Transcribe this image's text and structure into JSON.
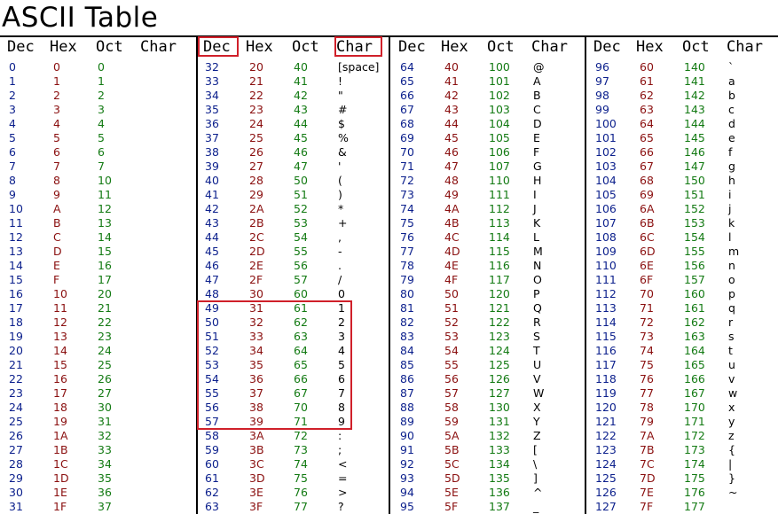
{
  "title": "ASCII Table",
  "headers": [
    "Dec",
    "Hex",
    "Oct",
    "Char"
  ],
  "colors": {
    "dec": "#0b1f8c",
    "hex": "#8a0f0f",
    "oct": "#137a13",
    "char": "#000000",
    "highlight": "#d0202a"
  },
  "char_overrides": {
    "32": "[space]"
  },
  "columns": [
    {
      "start": 0
    },
    {
      "start": 32
    },
    {
      "start": 64
    },
    {
      "start": 96
    }
  ],
  "rows_per_column": 32,
  "highlights": [
    {
      "label": "Dec header (column 2)"
    },
    {
      "label": "Char header (column 2)"
    },
    {
      "label": "Digits 1-9 block (Dec 49-57)"
    }
  ]
}
